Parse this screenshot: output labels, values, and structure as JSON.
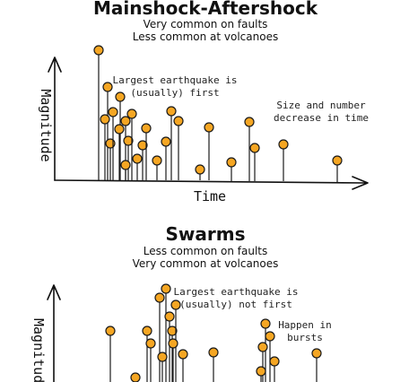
{
  "mainshock": {
    "title": "Mainshock-Aftershock",
    "subtitle_1": "Very common on faults",
    "subtitle_2": "Less common at volcanoes",
    "note_largest_1": "Largest earthquake is",
    "note_largest_2": "(usually) first",
    "note_size_1": "Size and number",
    "note_size_2": "decrease in time",
    "y_label": "Magnitude",
    "x_label": "Time",
    "dot_color": "#f5a623"
  },
  "swarms": {
    "title": "Swarms",
    "subtitle_1": "Less common on faults",
    "subtitle_2": "Very common at volcanoes",
    "note_largest_1": "Largest earthquake is",
    "note_largest_2": "(usually) not first",
    "note_bursts_1": "Happen in",
    "note_bursts_2": "bursts",
    "y_label": "Magnitude",
    "dot_color": "#f5a623"
  }
}
